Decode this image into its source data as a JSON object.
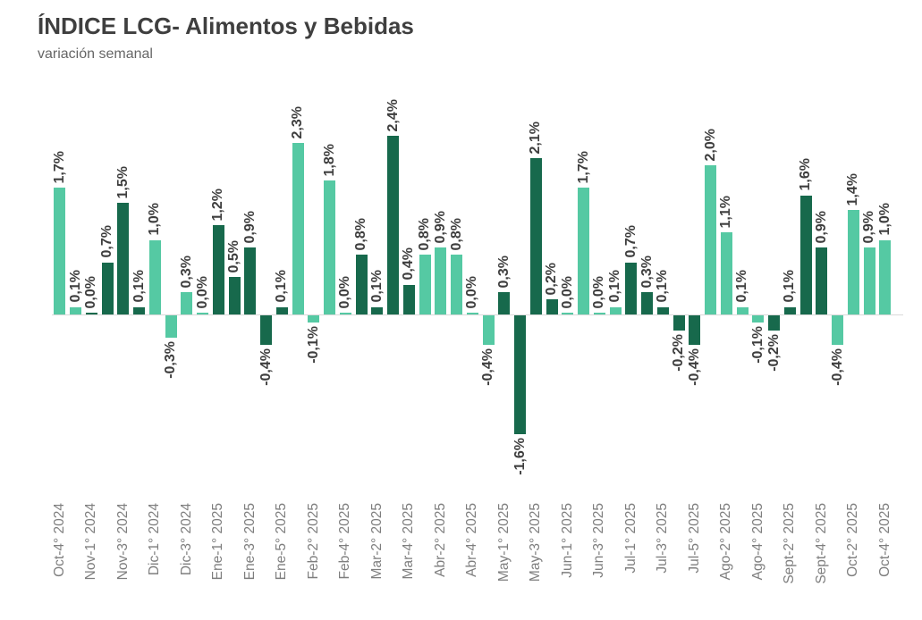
{
  "header": {
    "title": "ÍNDICE LCG- Alimentos y Bebidas",
    "subtitle": "variación semanal"
  },
  "colors": {
    "bar_light": "#55c9a3",
    "bar_dark": "#17694c",
    "value_label": "#3e3e3e",
    "tick_label": "#7e7e7e",
    "axis_line": "#d9d9d9",
    "title": "#3f3f3f",
    "subtitle": "#666666",
    "background": "#ffffff"
  },
  "chart_data": {
    "type": "bar",
    "title": "ÍNDICE LCG- Alimentos y Bebidas",
    "subtitle": "variación semanal",
    "unit": "%",
    "ylabel": "",
    "xlabel": "",
    "ylim": [
      -1.6,
      2.4
    ],
    "grid": false,
    "legend": false,
    "value_labels_rotated": true,
    "tick_labels_rotated": true,
    "palette": {
      "light": "#55c9a3",
      "dark": "#17694c"
    },
    "bars": [
      {
        "tick": "Oct-4° 2024",
        "value": 1.7,
        "label": "1,7%",
        "shade": "light"
      },
      {
        "tick": "",
        "value": 0.1,
        "label": "0,1%",
        "shade": "light"
      },
      {
        "tick": "Nov-1° 2024",
        "value": 0.0,
        "label": "0,0%",
        "shade": "dark"
      },
      {
        "tick": "",
        "value": 0.7,
        "label": "0,7%",
        "shade": "dark"
      },
      {
        "tick": "Nov-3° 2024",
        "value": 1.5,
        "label": "1,5%",
        "shade": "dark"
      },
      {
        "tick": "",
        "value": 0.1,
        "label": "0,1%",
        "shade": "dark"
      },
      {
        "tick": "Dic-1° 2024",
        "value": 1.0,
        "label": "1,0%",
        "shade": "light"
      },
      {
        "tick": "",
        "value": -0.3,
        "label": "-0,3%",
        "shade": "light"
      },
      {
        "tick": "Dic-3° 2024",
        "value": 0.3,
        "label": "0,3%",
        "shade": "light"
      },
      {
        "tick": "",
        "value": 0.0,
        "label": "0,0%",
        "shade": "light"
      },
      {
        "tick": "Ene-1° 2025",
        "value": 1.2,
        "label": "1,2%",
        "shade": "dark"
      },
      {
        "tick": "",
        "value": 0.5,
        "label": "0,5%",
        "shade": "dark"
      },
      {
        "tick": "Ene-3° 2025",
        "value": 0.9,
        "label": "0,9%",
        "shade": "dark"
      },
      {
        "tick": "",
        "value": -0.4,
        "label": "-0,4%",
        "shade": "dark"
      },
      {
        "tick": "Ene-5° 2025",
        "value": 0.1,
        "label": "0,1%",
        "shade": "dark"
      },
      {
        "tick": "",
        "value": 2.3,
        "label": "2,3%",
        "shade": "light"
      },
      {
        "tick": "Feb-2° 2025",
        "value": -0.1,
        "label": "-0,1%",
        "shade": "light"
      },
      {
        "tick": "",
        "value": 1.8,
        "label": "1,8%",
        "shade": "light"
      },
      {
        "tick": "Feb-4° 2025",
        "value": 0.0,
        "label": "0,0%",
        "shade": "light"
      },
      {
        "tick": "",
        "value": 0.8,
        "label": "0,8%",
        "shade": "dark"
      },
      {
        "tick": "Mar-2° 2025",
        "value": 0.1,
        "label": "0,1%",
        "shade": "dark"
      },
      {
        "tick": "",
        "value": 2.4,
        "label": "2,4%",
        "shade": "dark"
      },
      {
        "tick": "Mar-4° 2025",
        "value": 0.4,
        "label": "0,4%",
        "shade": "dark"
      },
      {
        "tick": "",
        "value": 0.8,
        "label": "0,8%",
        "shade": "light"
      },
      {
        "tick": "Abr-2° 2025",
        "value": 0.9,
        "label": "0,9%",
        "shade": "light"
      },
      {
        "tick": "",
        "value": 0.8,
        "label": "0,8%",
        "shade": "light"
      },
      {
        "tick": "Abr-4° 2025",
        "value": 0.0,
        "label": "0,0%",
        "shade": "light"
      },
      {
        "tick": "",
        "value": -0.4,
        "label": "-0,4%",
        "shade": "light"
      },
      {
        "tick": "May-1° 2025",
        "value": 0.3,
        "label": "0,3%",
        "shade": "dark"
      },
      {
        "tick": "",
        "value": -1.6,
        "label": "-1,6%",
        "shade": "dark"
      },
      {
        "tick": "May-3° 2025",
        "value": 2.1,
        "label": "2,1%",
        "shade": "dark"
      },
      {
        "tick": "",
        "value": 0.2,
        "label": "0,2%",
        "shade": "dark"
      },
      {
        "tick": "Jun-1° 2025",
        "value": 0.0,
        "label": "0,0%",
        "shade": "light"
      },
      {
        "tick": "",
        "value": 1.7,
        "label": "1,7%",
        "shade": "light"
      },
      {
        "tick": "Jun-3° 2025",
        "value": 0.0,
        "label": "0,0%",
        "shade": "light"
      },
      {
        "tick": "",
        "value": 0.1,
        "label": "0,1%",
        "shade": "light"
      },
      {
        "tick": "Jul-1° 2025",
        "value": 0.7,
        "label": "0,7%",
        "shade": "dark"
      },
      {
        "tick": "",
        "value": 0.3,
        "label": "0,3%",
        "shade": "dark"
      },
      {
        "tick": "Jul-3° 2025",
        "value": 0.1,
        "label": "0,1%",
        "shade": "dark"
      },
      {
        "tick": "",
        "value": -0.2,
        "label": "-0,2%",
        "shade": "dark"
      },
      {
        "tick": "Jul-5° 2025",
        "value": -0.4,
        "label": "-0,4%",
        "shade": "dark"
      },
      {
        "tick": "",
        "value": 2.0,
        "label": "2,0%",
        "shade": "light"
      },
      {
        "tick": "Ago-2° 2025",
        "value": 1.1,
        "label": "1,1%",
        "shade": "light"
      },
      {
        "tick": "",
        "value": 0.1,
        "label": "0,1%",
        "shade": "light"
      },
      {
        "tick": "Ago-4° 2025",
        "value": -0.1,
        "label": "-0,1%",
        "shade": "light"
      },
      {
        "tick": "",
        "value": -0.2,
        "label": "-0,2%",
        "shade": "dark"
      },
      {
        "tick": "Sept-2° 2025",
        "value": 0.1,
        "label": "0,1%",
        "shade": "dark"
      },
      {
        "tick": "",
        "value": 1.6,
        "label": "1,6%",
        "shade": "dark"
      },
      {
        "tick": "Sept-4° 2025",
        "value": 0.9,
        "label": "0,9%",
        "shade": "dark"
      },
      {
        "tick": "",
        "value": -0.4,
        "label": "-0,4%",
        "shade": "light"
      },
      {
        "tick": "Oct-2° 2025",
        "value": 1.4,
        "label": "1,4%",
        "shade": "light"
      },
      {
        "tick": "",
        "value": 0.9,
        "label": "0,9%",
        "shade": "light"
      },
      {
        "tick": "Oct-4° 2025",
        "value": 1.0,
        "label": "1,0%",
        "shade": "light"
      }
    ]
  }
}
